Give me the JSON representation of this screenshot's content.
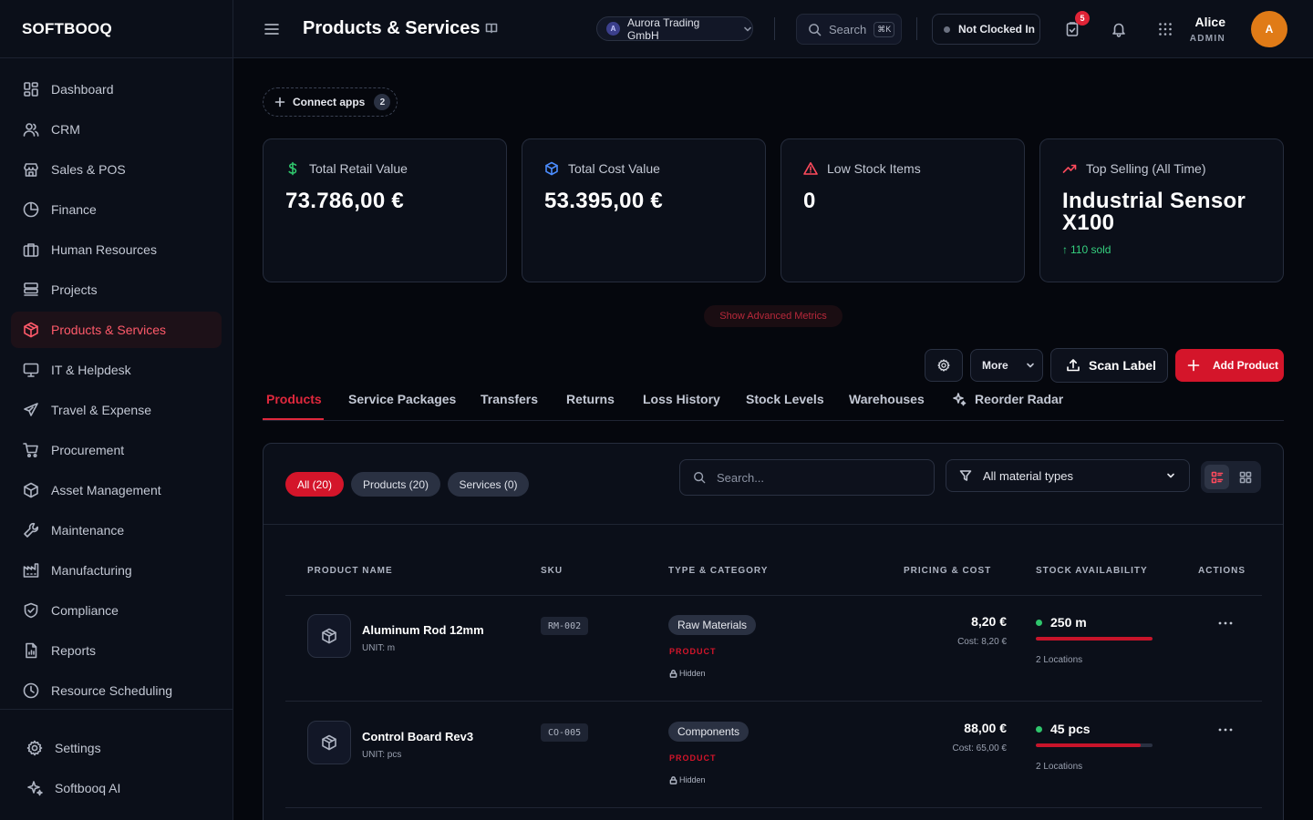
{
  "brand": "SOFTBOOQ",
  "sidebar": {
    "items": [
      {
        "label": "Dashboard",
        "icon": "grid-icon"
      },
      {
        "label": "CRM",
        "icon": "users-icon"
      },
      {
        "label": "Sales & POS",
        "icon": "store-icon"
      },
      {
        "label": "Finance",
        "icon": "pie-chart-icon"
      },
      {
        "label": "Human Resources",
        "icon": "briefcase-icon"
      },
      {
        "label": "Projects",
        "icon": "stack-icon"
      },
      {
        "label": "Products & Services",
        "icon": "package-icon",
        "active": true
      },
      {
        "label": "IT & Helpdesk",
        "icon": "monitor-icon"
      },
      {
        "label": "Travel & Expense",
        "icon": "plane-icon"
      },
      {
        "label": "Procurement",
        "icon": "cart-icon"
      },
      {
        "label": "Asset Management",
        "icon": "box-icon"
      },
      {
        "label": "Maintenance",
        "icon": "wrench-icon"
      },
      {
        "label": "Manufacturing",
        "icon": "factory-icon"
      },
      {
        "label": "Compliance",
        "icon": "shield-icon"
      },
      {
        "label": "Reports",
        "icon": "report-icon"
      },
      {
        "label": "Resource Scheduling",
        "icon": "clock-icon"
      }
    ],
    "bottom": [
      {
        "label": "Settings",
        "icon": "gear-icon"
      },
      {
        "label": "Softbooq AI",
        "icon": "sparkles-icon"
      }
    ]
  },
  "header": {
    "title": "Products & Services",
    "company_initial": "A",
    "company": "Aurora Trading GmbH",
    "search_label": "Search",
    "search_kbd": "⌘K",
    "clock_status": "Not Clocked In",
    "task_badge": "5",
    "user_name": "Alice",
    "user_role": "ADMIN",
    "avatar_initial": "A"
  },
  "connect": {
    "label": "Connect apps",
    "count": "2"
  },
  "cards": [
    {
      "title": "Total Retail Value",
      "value": "73.786,00 €",
      "icon": "dollar-icon",
      "color": "#2fc56c"
    },
    {
      "title": "Total Cost Value",
      "value": "53.395,00 €",
      "icon": "cube-icon",
      "color": "#4c8dff"
    },
    {
      "title": "Low Stock Items",
      "value": "0",
      "icon": "warning-icon",
      "color": "#ff4a5c"
    },
    {
      "title": "Top Selling (All Time)",
      "value": "Industrial Sensor X100",
      "sub": "110 sold",
      "icon": "trending-up-icon",
      "color": "#ff4a5c"
    }
  ],
  "advanced_metrics": "Show Advanced Metrics",
  "toolbar": {
    "more": "More",
    "scan": "Scan Label",
    "add": "Add Product"
  },
  "tabs": [
    "Products",
    "Service Packages",
    "Transfers",
    "Returns",
    "Loss History",
    "Stock Levels",
    "Warehouses",
    "Reorder Radar"
  ],
  "filters": {
    "chips": [
      "All (20)",
      "Products (20)",
      "Services (0)"
    ],
    "search_placeholder": "Search...",
    "material_type": "All material types"
  },
  "table": {
    "headers": [
      "PRODUCT NAME",
      "SKU",
      "TYPE & CATEGORY",
      "PRICING & COST",
      "STOCK AVAILABILITY",
      "ACTIONS"
    ],
    "rows": [
      {
        "name": "Aluminum Rod 12mm",
        "unit": "UNIT: m",
        "sku": "RM-002",
        "category": "Raw Materials",
        "type": "PRODUCT",
        "visibility": "Hidden",
        "price": "8,20 €",
        "cost": "Cost: 8,20 €",
        "stock": "250 m",
        "stock_level": 1.0,
        "locations": "2 Locations"
      },
      {
        "name": "Control Board Rev3",
        "unit": "UNIT: pcs",
        "sku": "CO-005",
        "category": "Components",
        "type": "PRODUCT",
        "visibility": "Hidden",
        "price": "88,00 €",
        "cost": "Cost: 65,00 €",
        "stock": "45 pcs",
        "stock_level": 0.9,
        "locations": "2 Locations"
      }
    ]
  }
}
